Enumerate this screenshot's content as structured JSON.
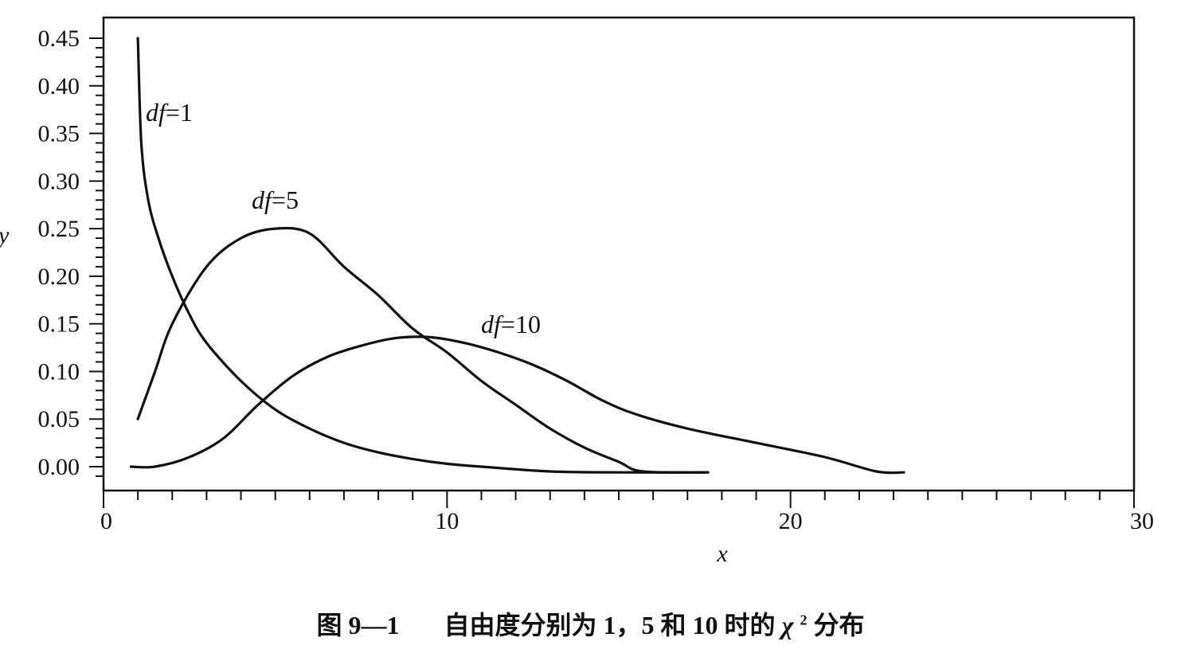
{
  "chart_data": {
    "type": "line",
    "title": "",
    "xlabel": "x",
    "ylabel": "y",
    "xlim": [
      0,
      30
    ],
    "ylim": [
      0,
      0.45
    ],
    "x_ticks": [
      "0",
      "10",
      "20",
      "30"
    ],
    "y_ticks": [
      "0.00",
      "0.05",
      "0.10",
      "0.15",
      "0.20",
      "0.25",
      "0.30",
      "0.35",
      "0.40",
      "0.45"
    ],
    "grid": false,
    "series": [
      {
        "name": "df=1",
        "label_prefix": "df",
        "label_value": "=1",
        "points": [
          [
            1.0,
            0.45
          ],
          [
            1.1,
            0.34
          ],
          [
            1.3,
            0.28
          ],
          [
            1.6,
            0.24
          ],
          [
            2.0,
            0.2
          ],
          [
            2.5,
            0.16
          ],
          [
            3.0,
            0.13
          ],
          [
            4.0,
            0.09
          ],
          [
            5.0,
            0.06
          ],
          [
            6.0,
            0.04
          ],
          [
            7.0,
            0.025
          ],
          [
            8.0,
            0.015
          ],
          [
            9.0,
            0.008
          ],
          [
            10.0,
            0.003
          ],
          [
            11.0,
            0.0
          ],
          [
            13.0,
            -0.005
          ],
          [
            15.0,
            -0.006
          ],
          [
            17.6,
            -0.006
          ]
        ]
      },
      {
        "name": "df=5",
        "label_prefix": "df",
        "label_value": "=5",
        "points": [
          [
            1.0,
            0.05
          ],
          [
            1.5,
            0.1
          ],
          [
            2.0,
            0.15
          ],
          [
            3.0,
            0.21
          ],
          [
            4.0,
            0.24
          ],
          [
            5.0,
            0.25
          ],
          [
            6.0,
            0.245
          ],
          [
            7.0,
            0.21
          ],
          [
            8.0,
            0.18
          ],
          [
            9.0,
            0.145
          ],
          [
            10.0,
            0.12
          ],
          [
            11.0,
            0.09
          ],
          [
            12.0,
            0.065
          ],
          [
            13.0,
            0.04
          ],
          [
            14.0,
            0.02
          ],
          [
            15.0,
            0.005
          ],
          [
            15.7,
            -0.005
          ],
          [
            17.6,
            -0.006
          ]
        ]
      },
      {
        "name": "df=10",
        "label_prefix": "df",
        "label_value": "=10",
        "points": [
          [
            0.8,
            0.0
          ],
          [
            1.5,
            0.0
          ],
          [
            2.5,
            0.01
          ],
          [
            3.5,
            0.03
          ],
          [
            4.5,
            0.065
          ],
          [
            5.5,
            0.095
          ],
          [
            6.5,
            0.115
          ],
          [
            7.5,
            0.127
          ],
          [
            8.5,
            0.135
          ],
          [
            9.5,
            0.136
          ],
          [
            10.5,
            0.13
          ],
          [
            11.5,
            0.12
          ],
          [
            12.5,
            0.107
          ],
          [
            13.5,
            0.09
          ],
          [
            14.5,
            0.07
          ],
          [
            15.5,
            0.055
          ],
          [
            17.0,
            0.04
          ],
          [
            19.0,
            0.025
          ],
          [
            21.0,
            0.01
          ],
          [
            22.5,
            -0.005
          ],
          [
            23.3,
            -0.006
          ]
        ]
      }
    ]
  },
  "caption": {
    "figure_number": "图 9—1",
    "text_before": "自由度分别为 1，5 和 10 时的 ",
    "symbol": "χ",
    "superscript": "2",
    "text_after": " 分布"
  }
}
